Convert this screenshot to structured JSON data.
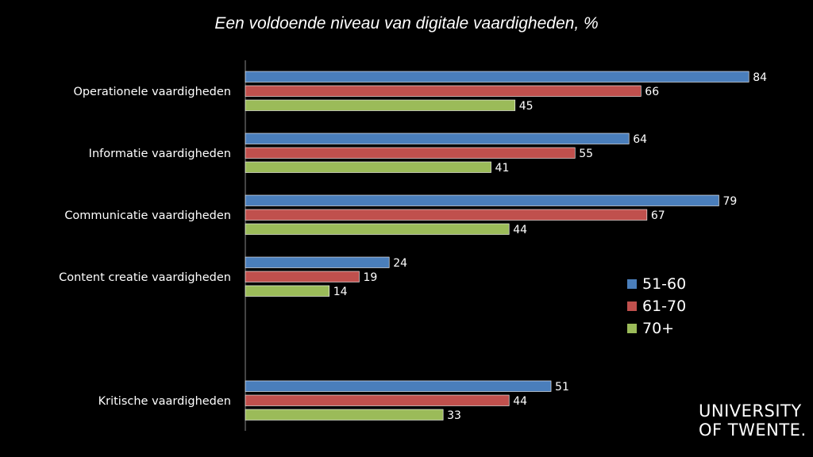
{
  "chart_data": {
    "type": "bar",
    "orientation": "horizontal",
    "title": "Een voldoende niveau van digitale vaardigheden, %",
    "categories": [
      "Operationele vaardigheden",
      "Informatie vaardigheden",
      "Communicatie vaardigheden",
      "Content creatie vaardigheden",
      "Kritische vaardigheden"
    ],
    "series": [
      {
        "name": "51-60",
        "color": "#4a7ebb",
        "values": [
          84,
          64,
          79,
          24,
          51
        ]
      },
      {
        "name": "61-70",
        "color": "#c0504d",
        "values": [
          66,
          55,
          67,
          19,
          44
        ]
      },
      {
        "name": "70+",
        "color": "#9bbb59",
        "values": [
          45,
          41,
          44,
          14,
          33
        ]
      }
    ],
    "xlim": [
      0,
      100
    ],
    "grid": false,
    "data_labels": true,
    "legend_position": "right"
  },
  "logo": {
    "line1": "UNIVERSITY",
    "line2": "OF TWENTE."
  }
}
